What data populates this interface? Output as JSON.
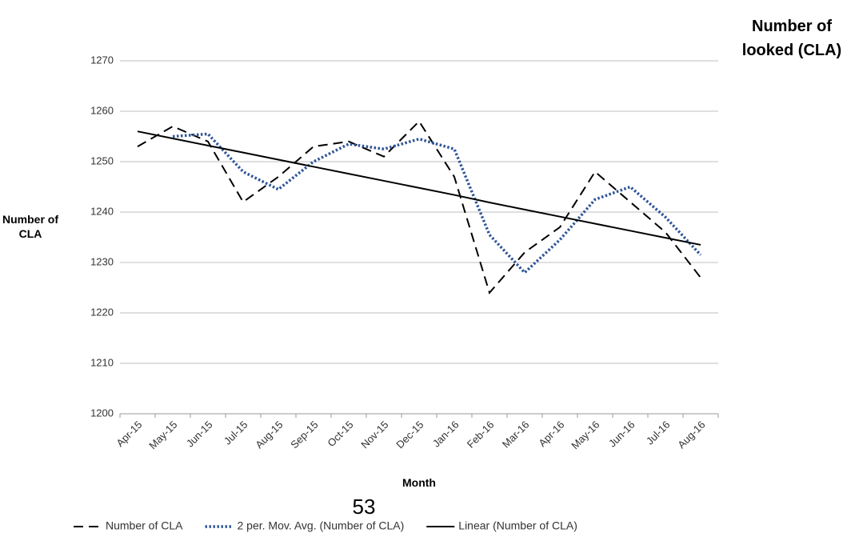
{
  "chart_data": {
    "type": "line",
    "side_title": "Number of looked (CLA)",
    "x_label": "Month",
    "y_label": "Number of CLA",
    "page_number": "53",
    "categories": [
      "Apr-15",
      "May-15",
      "Jun-15",
      "Jul-15",
      "Aug-15",
      "Sep-15",
      "Oct-15",
      "Nov-15",
      "Dec-15",
      "Jan-16",
      "Feb-16",
      "Mar-16",
      "Apr-16",
      "May-16",
      "Jun-16",
      "Jul-16",
      "Aug-16"
    ],
    "series": [
      {
        "name": "Number of CLA",
        "color": "#000000",
        "style": "dashed",
        "values": [
          1253,
          1257,
          1254,
          1242,
          1247,
          1253,
          1254,
          1251,
          1258,
          1247,
          1224,
          1232,
          1237,
          1248,
          1242,
          1236,
          1227
        ]
      },
      {
        "name": "2 per. Mov. Avg. (Number of CLA)",
        "color": "#2f5597",
        "style": "dotted",
        "values": [
          null,
          1255,
          1255.5,
          1248,
          1244.5,
          1250,
          1253.5,
          1252.5,
          1254.5,
          1252.5,
          1235.5,
          1228,
          1234.5,
          1242.5,
          1245,
          1239,
          1231.5
        ]
      },
      {
        "name": "Linear (Number of CLA)",
        "color": "#000000",
        "style": "solid",
        "values": [
          1256,
          1254.6,
          1253.2,
          1251.8,
          1250.4,
          1249,
          1247.6,
          1246.2,
          1244.8,
          1243.4,
          1241.9,
          1240.5,
          1239.1,
          1237.7,
          1236.3,
          1234.9,
          1233.5
        ]
      }
    ],
    "ylim": [
      1200,
      1270
    ],
    "yticks": [
      1200,
      1210,
      1220,
      1230,
      1240,
      1250,
      1260,
      1270
    ],
    "grid": true,
    "legend": "bottom"
  }
}
